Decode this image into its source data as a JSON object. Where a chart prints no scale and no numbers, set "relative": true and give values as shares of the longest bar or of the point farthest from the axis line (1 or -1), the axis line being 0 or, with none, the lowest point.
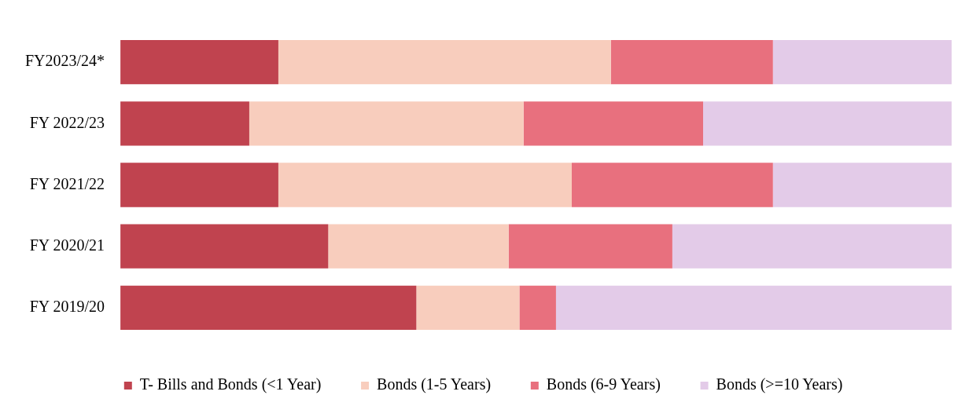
{
  "chart_data": {
    "type": "bar",
    "orientation": "horizontal",
    "stacked": true,
    "relative": true,
    "legend": "bottom",
    "categories": [
      "FY2023/24*",
      "FY 2022/23",
      "FY 2021/22",
      "FY 2020/21",
      "FY 2019/20"
    ],
    "series": [
      {
        "name": "T- Bills and Bonds (<1 Year)",
        "color": "#c0434f",
        "values": [
          0.19,
          0.155,
          0.19,
          0.25,
          0.356
        ]
      },
      {
        "name": "Bonds (1-5 Years)",
        "color": "#f8cdbd",
        "values": [
          0.4,
          0.33,
          0.353,
          0.217,
          0.124
        ]
      },
      {
        "name": "Bonds (6-9 Years)",
        "color": "#e8707e",
        "values": [
          0.195,
          0.216,
          0.242,
          0.197,
          0.044
        ]
      },
      {
        "name": "Bonds (>=10 Years)",
        "color": "#e3cbe8",
        "values": [
          0.215,
          0.299,
          0.215,
          0.336,
          0.476
        ]
      }
    ]
  }
}
